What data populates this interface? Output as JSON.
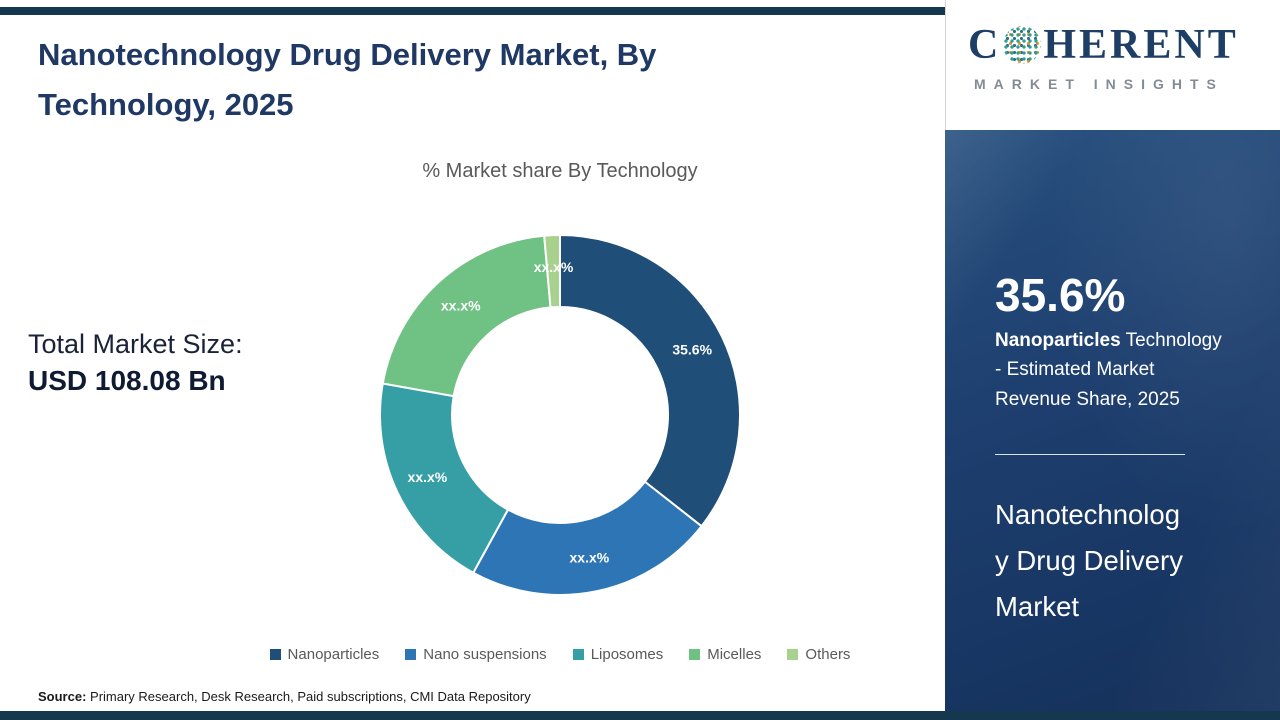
{
  "page": {
    "title": "Nanotechnology Drug Delivery Market, By\nTechnology, 2025",
    "subtitle": "% Market share By Technology",
    "total_market_label": "Total Market Size:",
    "total_market_value": "USD 108.08 Bn",
    "source_label": "Source:",
    "source_text": " Primary Research, Desk Research, Paid subscriptions, CMI Data Repository"
  },
  "logo": {
    "brand_prefix": "C",
    "brand_suffix": "HERENT",
    "tagline": "MARKET INSIGHTS"
  },
  "side_panel": {
    "stat_value": "35.6%",
    "stat_highlight": "Nanoparticles",
    "stat_rest": " Technology - Estimated Market Revenue Share, 2025",
    "market_title": "Nanotechnolog\ny Drug Delivery\nMarket"
  },
  "chart_data": {
    "type": "pie",
    "subtype": "donut",
    "title": "% Market share By Technology",
    "categories": [
      "Nanoparticles",
      "Nano suspensions",
      "Liposomes",
      "Micelles",
      "Others"
    ],
    "values": [
      35.6,
      22.4,
      19.8,
      20.8,
      1.4
    ],
    "labels": [
      "35.6%",
      "xx.x%",
      "xx.x%",
      "xx.x%",
      "xx.x%"
    ],
    "colors": [
      "#1f4e79",
      "#2e75b6",
      "#359fa5",
      "#70c284",
      "#a9d18e"
    ],
    "start_angle_deg": -90,
    "direction": "clockwise",
    "inner_radius_ratio": 0.6,
    "legend_position": "bottom",
    "note": "Only the Nanoparticles share (35.6%) is disclosed; remaining segments show xx.x% placeholders, arc sizes estimated from pixels"
  },
  "theme": {
    "accent_bar": "#16384e",
    "panel_top": "#27507f",
    "panel_bottom": "#14305a",
    "title_color": "#1f3864",
    "text_gray": "#595959"
  }
}
